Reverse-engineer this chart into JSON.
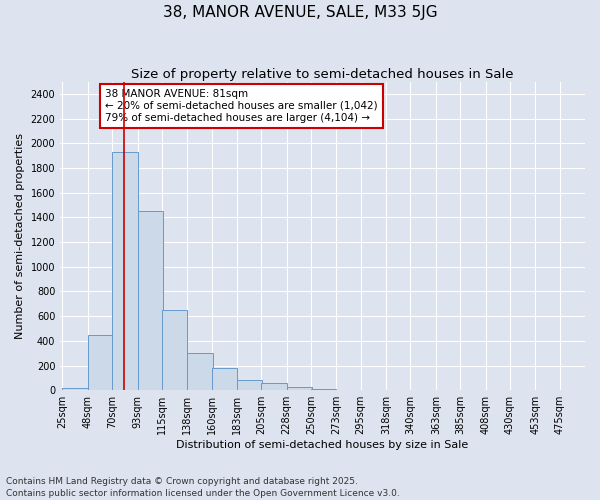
{
  "title": "38, MANOR AVENUE, SALE, M33 5JG",
  "subtitle": "Size of property relative to semi-detached houses in Sale",
  "xlabel": "Distribution of semi-detached houses by size in Sale",
  "ylabel": "Number of semi-detached properties",
  "footer": "Contains HM Land Registry data © Crown copyright and database right 2025.\nContains public sector information licensed under the Open Government Licence v3.0.",
  "property_size": 81,
  "annotation_text": "38 MANOR AVENUE: 81sqm\n← 20% of semi-detached houses are smaller (1,042)\n79% of semi-detached houses are larger (4,104) →",
  "bar_color": "#ccd9e8",
  "bar_edge_color": "#6699cc",
  "vline_color": "#cc0000",
  "annotation_box_color": "#cc0000",
  "background_color": "#dde4ef",
  "grid_color": "#ffffff",
  "bins": [
    25,
    48,
    70,
    93,
    115,
    138,
    160,
    183,
    205,
    228,
    250,
    273,
    295,
    318,
    340,
    363,
    385,
    408,
    430,
    453,
    475
  ],
  "counts": [
    20,
    450,
    1930,
    1450,
    650,
    300,
    180,
    80,
    60,
    30,
    10,
    5,
    3,
    2,
    0,
    0,
    0,
    0,
    0,
    0
  ],
  "ylim": [
    0,
    2500
  ],
  "yticks": [
    0,
    200,
    400,
    600,
    800,
    1000,
    1200,
    1400,
    1600,
    1800,
    2000,
    2200,
    2400
  ],
  "title_fontsize": 11,
  "subtitle_fontsize": 9.5,
  "tick_fontsize": 7,
  "label_fontsize": 8,
  "footer_fontsize": 6.5
}
